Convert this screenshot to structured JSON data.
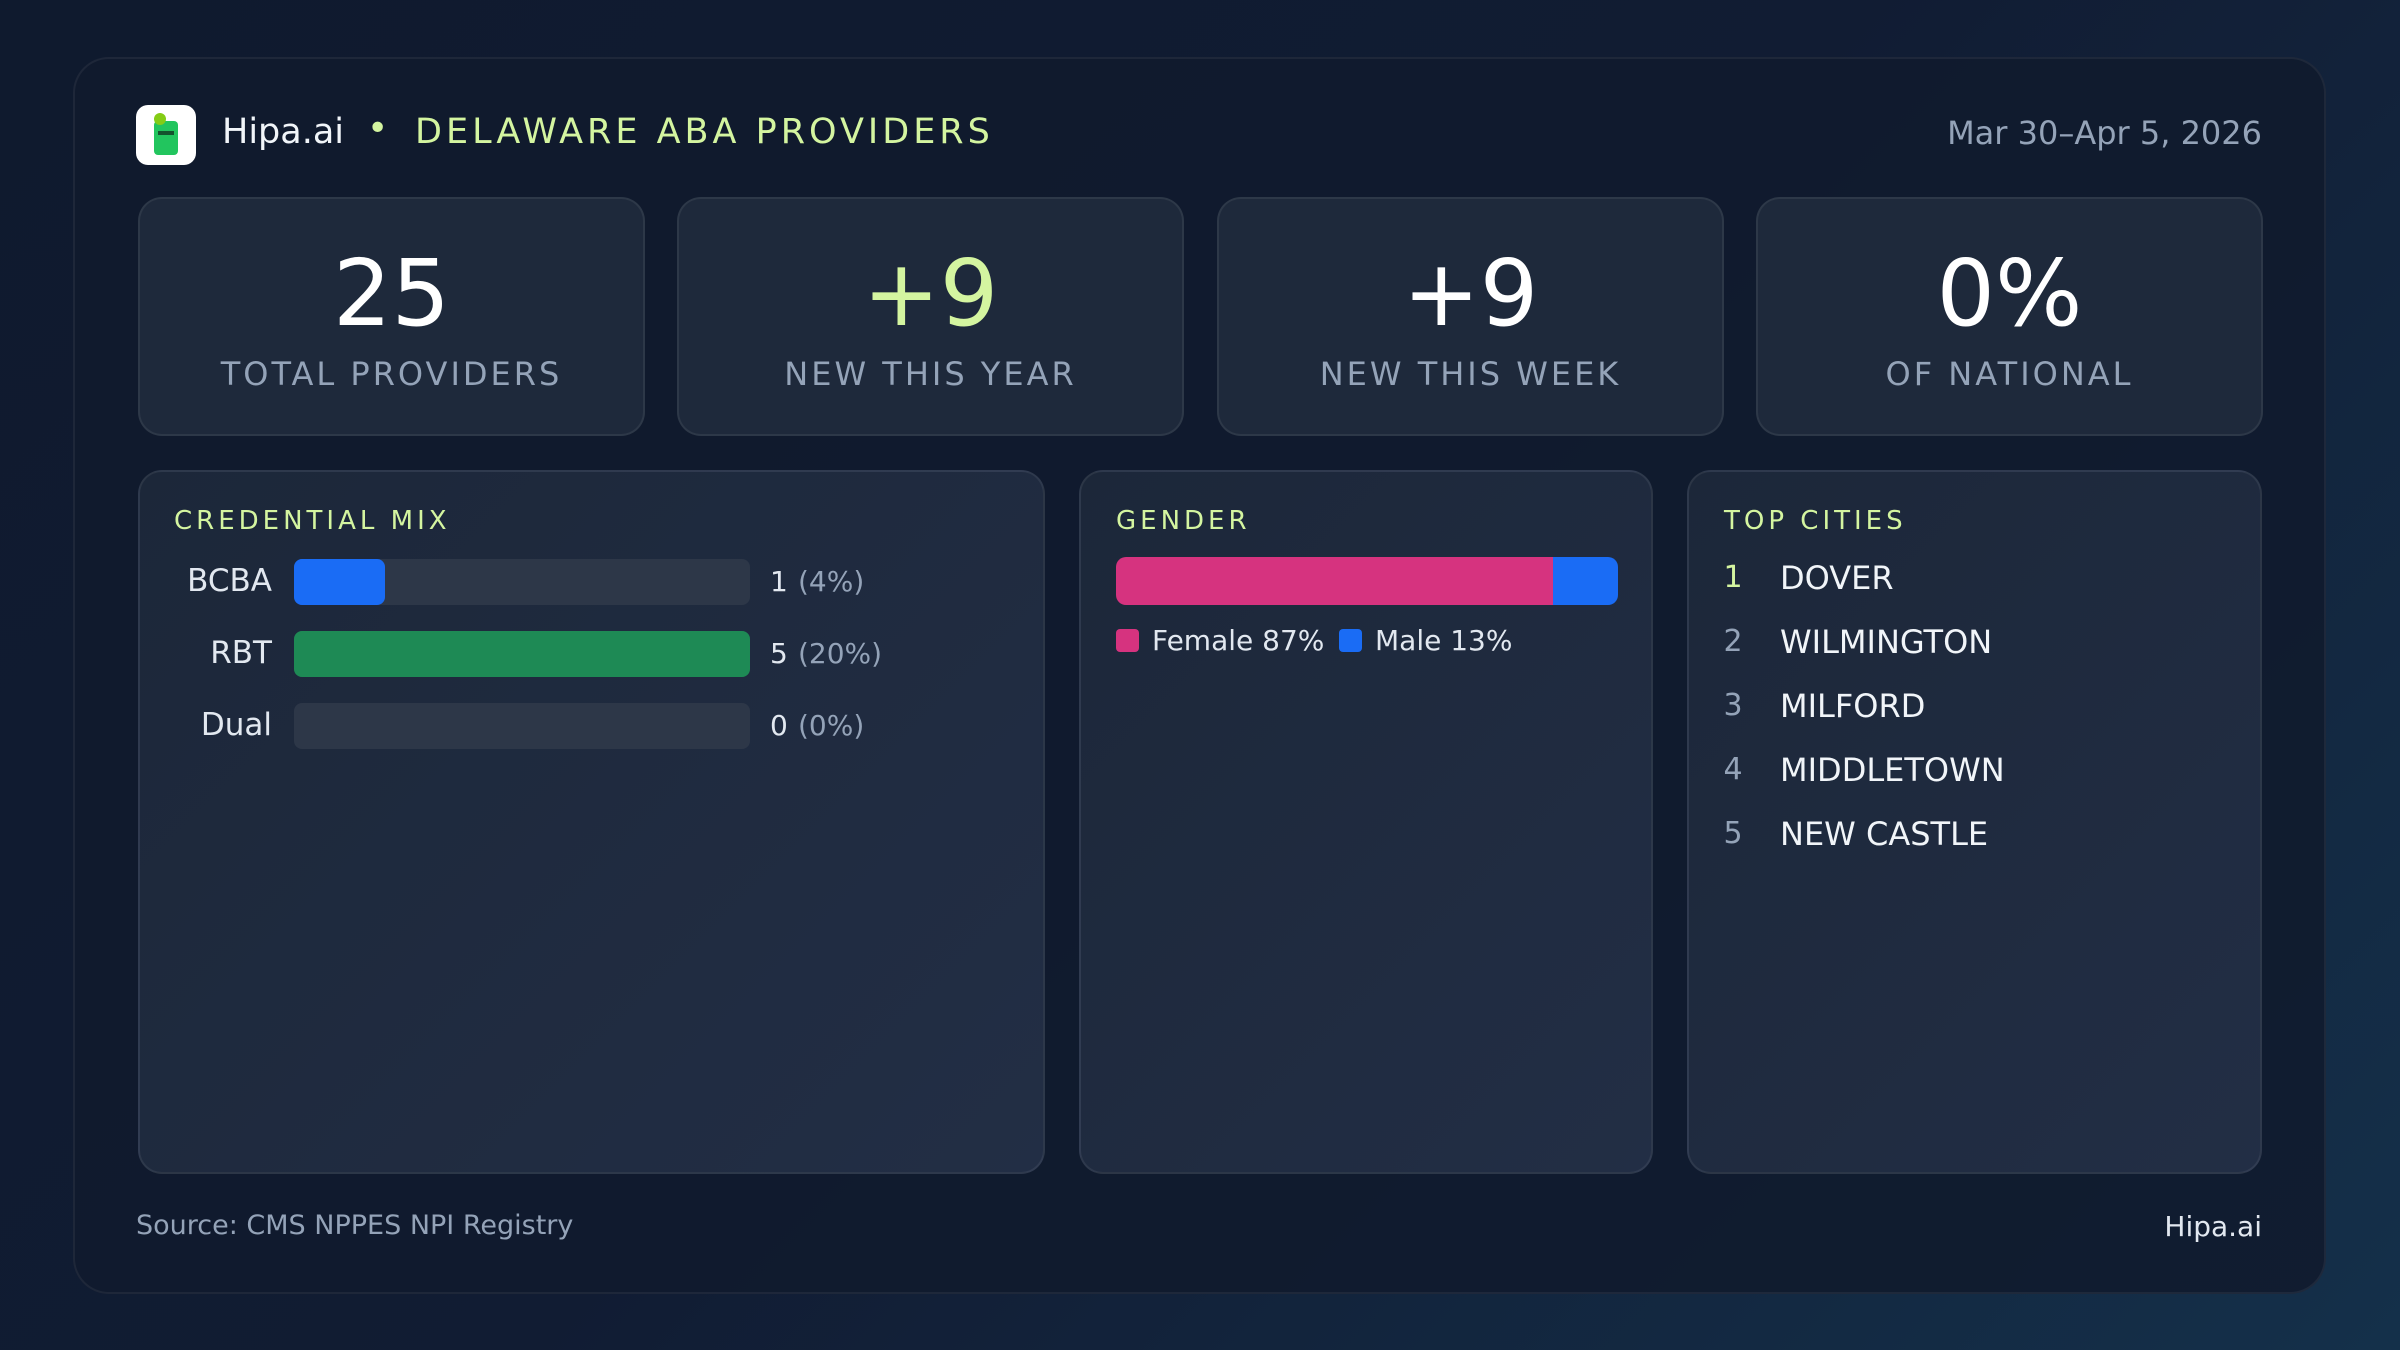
{
  "header": {
    "brand": "Hipa.ai",
    "title": "DELAWARE ABA PROVIDERS",
    "date": "Mar 30–Apr 5, 2026"
  },
  "stats": [
    {
      "value": "25",
      "label": "TOTAL PROVIDERS"
    },
    {
      "value": "+9",
      "label": "NEW THIS YEAR",
      "accent": true
    },
    {
      "value": "+9",
      "label": "NEW THIS WEEK"
    },
    {
      "value": "0%",
      "label": "OF NATIONAL"
    }
  ],
  "credential_mix": {
    "title": "CREDENTIAL MIX",
    "items": [
      {
        "label": "BCBA",
        "count": 1,
        "percent": 4,
        "percent_label": "(4%)",
        "color": "#1a6cf5"
      },
      {
        "label": "RBT",
        "count": 5,
        "percent": 20,
        "percent_label": "(20%)",
        "color": "#1e8a55"
      },
      {
        "label": "Dual",
        "count": 0,
        "percent": 0,
        "percent_label": "(0%)",
        "color": "#8b5cf6"
      }
    ]
  },
  "gender": {
    "title": "GENDER",
    "segments": [
      {
        "label": "Female 87%",
        "value": 87,
        "color": "#d6337f"
      },
      {
        "label": "Male 13%",
        "value": 13,
        "color": "#1a6cf5"
      }
    ]
  },
  "top_cities": {
    "title": "TOP CITIES",
    "items": [
      {
        "rank": 1,
        "name": "DOVER"
      },
      {
        "rank": 2,
        "name": "WILMINGTON"
      },
      {
        "rank": 3,
        "name": "MILFORD"
      },
      {
        "rank": 4,
        "name": "MIDDLETOWN"
      },
      {
        "rank": 5,
        "name": "NEW CASTLE"
      }
    ]
  },
  "footer": {
    "source": "Source: CMS NPPES NPI Registry",
    "brand": "Hipa.ai"
  }
}
